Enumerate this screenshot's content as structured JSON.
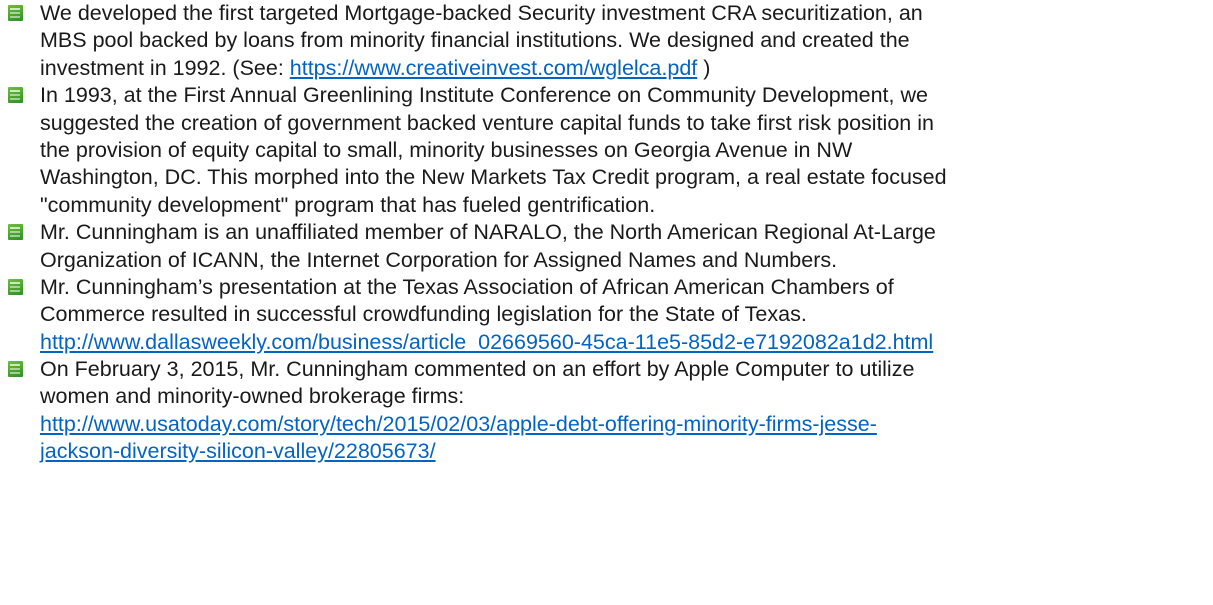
{
  "items": [
    {
      "lines": [
        [
          {
            "text": "We developed the first targeted Mortgage-backed Security investment CRA securitization, an"
          }
        ],
        [
          {
            "text": "MBS pool backed by loans from minority financial institutions. We designed and created the"
          }
        ],
        [
          {
            "text": "investment in 1992. (See: "
          },
          {
            "link": "https://www.creativeinvest.com/wglelca.pdf"
          },
          {
            "text": " )"
          }
        ]
      ]
    },
    {
      "lines": [
        [
          {
            "text": "In 1993, at the First Annual Greenlining Institute Conference on Community Development, we"
          }
        ],
        [
          {
            "text": "suggested the creation of government backed venture capital funds to take first risk position in"
          }
        ],
        [
          {
            "text": "the provision of equity capital to small, minority businesses on Georgia Avenue in NW"
          }
        ],
        [
          {
            "text": "Washington, DC. This morphed into the New Markets Tax Credit program, a real estate focused"
          }
        ],
        [
          {
            "text": "\"community development\" program that has fueled gentrification."
          }
        ]
      ]
    },
    {
      "lines": [
        [
          {
            "text": "Mr. Cunningham is an unaffiliated member of NARALO, the North American Regional At-Large"
          }
        ],
        [
          {
            "text": "Organization of ICANN, the Internet Corporation for Assigned Names and Numbers."
          }
        ]
      ]
    },
    {
      "lines": [
        [
          {
            "text": "Mr. Cunningham’s presentation at the Texas Association of African American Chambers of"
          }
        ],
        [
          {
            "text": "Commerce resulted in successful crowdfunding legislation for the State of Texas."
          }
        ],
        [
          {
            "link": "http://www.dallasweekly.com/business/article_02669560-45ca-11e5-85d2-e7192082a1d2.html"
          }
        ]
      ]
    },
    {
      "lines": [
        [
          {
            "text": "On February 3, 2015, Mr. Cunningham commented on an effort by Apple Computer to utilize"
          }
        ],
        [
          {
            "text": "women and minority-owned brokerage firms:"
          }
        ],
        [
          {
            "link": "http://www.usatoday.com/story/tech/2015/02/03/apple-debt-offering-minority-firms-jesse-"
          }
        ],
        [
          {
            "link": "jackson-diversity-silicon-valley/22805673/"
          }
        ]
      ]
    }
  ]
}
